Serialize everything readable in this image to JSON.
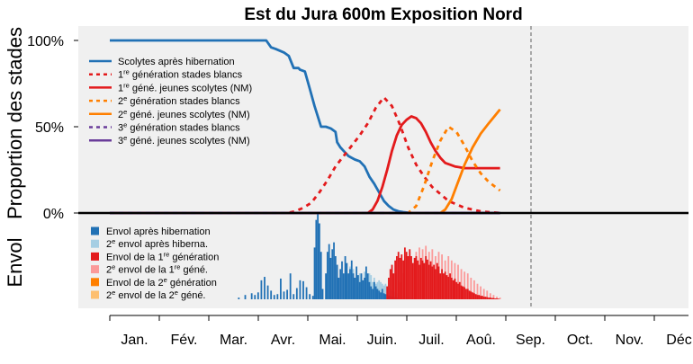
{
  "chart_data": {
    "type": "line+bar",
    "title": "Est du Jura 600m Exposition Nord",
    "ylabel_top": "Proportion des stades",
    "ylabel_bottom": "Envol",
    "yticks": [
      "100%",
      "50%",
      "0%"
    ],
    "ylim_top": [
      0,
      1.1
    ],
    "months": [
      "Jan.",
      "Fév.",
      "Mar.",
      "Avr.",
      "Mai.",
      "Juin.",
      "Juil.",
      "Aoû.",
      "Sep.",
      "Oct.",
      "Nov.",
      "Déc"
    ],
    "x_unit": "day of year",
    "xlim": [
      0,
      365
    ],
    "current_day_marker": 242,
    "grid": false,
    "legend_top_position": "top-left",
    "legend_bottom_position": "bottom-left",
    "series": [
      {
        "key": "s0",
        "pre": "Scolytes après hibernation",
        "sup": "",
        "post": "",
        "color": "#2171b5",
        "dash": false,
        "x": [
          0,
          97,
          100,
          103,
          108,
          111,
          114,
          117,
          118,
          121,
          124,
          127,
          130,
          131,
          134,
          137,
          140,
          141,
          143,
          146,
          148,
          150,
          152,
          155,
          158,
          161,
          164,
          167,
          170,
          173,
          176,
          179,
          182,
          185,
          188,
          242
        ],
        "y": [
          1,
          1,
          0.96,
          0.95,
          0.93,
          0.91,
          0.84,
          0.84,
          0.83,
          0.82,
          0.72,
          0.62,
          0.53,
          0.5,
          0.5,
          0.49,
          0.47,
          0.41,
          0.38,
          0.35,
          0.33,
          0.32,
          0.31,
          0.3,
          0.27,
          0.21,
          0.17,
          0.12,
          0.07,
          0.04,
          0.02,
          0.01,
          0.005,
          0.002,
          0,
          0
        ]
      },
      {
        "key": "s1",
        "pre": "1",
        "sup": "re",
        "post": " génération stades blancs",
        "color": "#e31a1c",
        "dash": true,
        "x": [
          0,
          110,
          115,
          120,
          125,
          130,
          135,
          140,
          145,
          150,
          155,
          160,
          165,
          170,
          175,
          180,
          185,
          190,
          195,
          200,
          205,
          210,
          215,
          220,
          225,
          230,
          235,
          240,
          242
        ],
        "y": [
          0,
          0,
          0.01,
          0.03,
          0.06,
          0.12,
          0.19,
          0.27,
          0.33,
          0.39,
          0.45,
          0.52,
          0.61,
          0.67,
          0.62,
          0.51,
          0.38,
          0.28,
          0.21,
          0.15,
          0.11,
          0.07,
          0.05,
          0.03,
          0.02,
          0.01,
          0.005,
          0.002,
          0
        ]
      },
      {
        "key": "s2",
        "pre": "1",
        "sup": "re",
        "post": " géné. jeunes scolytes (NM)",
        "color": "#e31a1c",
        "dash": false,
        "x": [
          0,
          160,
          163,
          166,
          169,
          172,
          175,
          178,
          181,
          184,
          187,
          190,
          193,
          196,
          199,
          202,
          205,
          208,
          211,
          214,
          217,
          220,
          225,
          230,
          235,
          242
        ],
        "y": [
          0,
          0,
          0.02,
          0.07,
          0.15,
          0.25,
          0.36,
          0.45,
          0.51,
          0.54,
          0.56,
          0.55,
          0.52,
          0.47,
          0.41,
          0.36,
          0.32,
          0.29,
          0.28,
          0.27,
          0.265,
          0.26,
          0.26,
          0.26,
          0.26,
          0.26
        ]
      },
      {
        "key": "s3",
        "pre": "2",
        "sup": "e",
        "post": " génération stades blancs",
        "color": "#ff7f00",
        "dash": true,
        "x": [
          0,
          185,
          190,
          195,
          200,
          205,
          210,
          215,
          220,
          225,
          230,
          235,
          242
        ],
        "y": [
          0,
          0,
          0.04,
          0.16,
          0.3,
          0.42,
          0.5,
          0.47,
          0.39,
          0.3,
          0.23,
          0.18,
          0.13
        ]
      },
      {
        "key": "s4",
        "pre": "2",
        "sup": "e",
        "post": " géné. jeunes scolytes (NM)",
        "color": "#ff7f00",
        "dash": false,
        "x": [
          0,
          205,
          208,
          212,
          216,
          220,
          225,
          230,
          235,
          242
        ],
        "y": [
          0,
          0,
          0.02,
          0.08,
          0.18,
          0.28,
          0.38,
          0.46,
          0.52,
          0.6
        ]
      },
      {
        "key": "s5",
        "pre": "3",
        "sup": "e",
        "post": " génération stades blancs",
        "color": "#6a3d9a",
        "dash": true,
        "x": [
          0,
          242
        ],
        "y": [
          0,
          0
        ]
      },
      {
        "key": "s6",
        "pre": "3",
        "sup": "e",
        "post": " géné. jeunes scolytes (NM)",
        "color": "#6a3d9a",
        "dash": false,
        "x": [
          0,
          242
        ],
        "y": [
          0,
          0
        ]
      }
    ],
    "bar_series": [
      {
        "key": "b0",
        "pre": "Envol après hibernation",
        "sup": "",
        "post": "",
        "color": "#2171b5"
      },
      {
        "key": "b1",
        "pre": "2",
        "sup": "e",
        "post": " envol après hiberna.",
        "color": "#a6cee3"
      },
      {
        "key": "b2",
        "pre": "Envol de la 1",
        "sup": "re",
        "post": " génération",
        "color": "#e31a1c"
      },
      {
        "key": "b3",
        "pre": "2",
        "sup": "e",
        "post": " envol de la 1",
        "sup2": "re",
        "post2": " géné.",
        "color": "#fb9a99"
      },
      {
        "key": "b4",
        "pre": "Envol de la 2",
        "sup": "e",
        "post": " génération",
        "color": "#ff7f00"
      },
      {
        "key": "b5",
        "pre": "2",
        "sup": "e",
        "post": " envol de la 2",
        "sup2": "e",
        "post2": " géné.",
        "color": "#fdbf6f"
      }
    ],
    "bars_b0": [
      [
        80,
        0.02
      ],
      [
        84,
        0.05
      ],
      [
        88,
        0.07
      ],
      [
        90,
        0.05
      ],
      [
        92,
        0.08
      ],
      [
        94,
        0.22
      ],
      [
        96,
        0.26
      ],
      [
        98,
        0.16
      ],
      [
        100,
        0.1
      ],
      [
        102,
        0.05
      ],
      [
        104,
        0.06
      ],
      [
        106,
        0.24
      ],
      [
        108,
        0.09
      ],
      [
        110,
        0.11
      ],
      [
        112,
        0.3
      ],
      [
        114,
        0.06
      ],
      [
        116,
        0.13
      ],
      [
        118,
        0.22
      ],
      [
        120,
        0.21
      ],
      [
        122,
        0.14
      ],
      [
        124,
        0.06
      ],
      [
        126,
        0.04
      ],
      [
        127,
        0.6
      ],
      [
        128,
        0.92
      ],
      [
        129,
        1.0
      ],
      [
        130,
        0.88
      ],
      [
        131,
        0.55
      ],
      [
        132,
        0.12
      ],
      [
        134,
        0.3
      ],
      [
        135,
        0.55
      ],
      [
        136,
        0.64
      ],
      [
        137,
        0.48
      ],
      [
        138,
        0.58
      ],
      [
        139,
        0.66
      ],
      [
        140,
        0.5
      ],
      [
        141,
        0.4
      ],
      [
        142,
        0.25
      ],
      [
        143,
        0.35
      ],
      [
        144,
        0.44
      ],
      [
        145,
        0.3
      ],
      [
        146,
        0.5
      ],
      [
        147,
        0.42
      ],
      [
        148,
        0.3
      ],
      [
        149,
        0.35
      ],
      [
        150,
        0.45
      ],
      [
        151,
        0.3
      ],
      [
        152,
        0.25
      ],
      [
        153,
        0.38
      ],
      [
        154,
        0.28
      ],
      [
        155,
        0.2
      ],
      [
        156,
        0.3
      ],
      [
        157,
        0.22
      ],
      [
        158,
        0.25
      ],
      [
        159,
        0.38
      ],
      [
        160,
        0.3
      ],
      [
        161,
        0.2
      ],
      [
        162,
        0.15
      ],
      [
        163,
        0.12
      ],
      [
        164,
        0.2
      ],
      [
        165,
        0.15
      ],
      [
        166,
        0.12
      ],
      [
        167,
        0.1
      ],
      [
        168,
        0.08
      ],
      [
        169,
        0.12
      ],
      [
        170,
        0.07
      ],
      [
        171,
        0.06
      ],
      [
        172,
        0.05
      ],
      [
        173,
        0.04
      ],
      [
        174,
        0.04
      ],
      [
        175,
        0.03
      ],
      [
        176,
        0.03
      ],
      [
        177,
        0.02
      ],
      [
        178,
        0.02
      ],
      [
        180,
        0.015
      ],
      [
        182,
        0.01
      ]
    ],
    "bars_b1": [
      [
        148,
        0.1
      ],
      [
        149,
        0.38
      ],
      [
        150,
        0.28
      ],
      [
        151,
        0.35
      ],
      [
        152,
        0.18
      ],
      [
        153,
        0.25
      ],
      [
        154,
        0.15
      ],
      [
        155,
        0.3
      ],
      [
        156,
        0.28
      ],
      [
        157,
        0.2
      ],
      [
        158,
        0.32
      ],
      [
        159,
        0.22
      ],
      [
        160,
        0.25
      ],
      [
        161,
        0.3
      ],
      [
        162,
        0.28
      ],
      [
        163,
        0.2
      ],
      [
        164,
        0.25
      ],
      [
        165,
        0.18
      ],
      [
        166,
        0.2
      ],
      [
        167,
        0.22
      ],
      [
        168,
        0.2
      ],
      [
        169,
        0.18
      ],
      [
        170,
        0.16
      ],
      [
        171,
        0.18
      ],
      [
        172,
        0.15
      ],
      [
        173,
        0.14
      ],
      [
        174,
        0.12
      ],
      [
        175,
        0.1
      ],
      [
        176,
        0.09
      ],
      [
        177,
        0.08
      ],
      [
        178,
        0.07
      ],
      [
        179,
        0.06
      ],
      [
        180,
        0.05
      ],
      [
        181,
        0.05
      ],
      [
        182,
        0.04
      ],
      [
        183,
        0.04
      ],
      [
        184,
        0.03
      ],
      [
        185,
        0.03
      ],
      [
        186,
        0.02
      ],
      [
        187,
        0.02
      ],
      [
        188,
        0.015
      ]
    ],
    "bars_b2": [
      [
        172,
        0.15
      ],
      [
        173,
        0.25
      ],
      [
        174,
        0.35
      ],
      [
        175,
        0.4
      ],
      [
        176,
        0.3
      ],
      [
        177,
        0.45
      ],
      [
        178,
        0.5
      ],
      [
        179,
        0.55
      ],
      [
        180,
        0.48
      ],
      [
        181,
        0.52
      ],
      [
        182,
        0.45
      ],
      [
        183,
        0.6
      ],
      [
        184,
        0.55
      ],
      [
        185,
        0.5
      ],
      [
        186,
        0.58
      ],
      [
        187,
        0.5
      ],
      [
        188,
        0.42
      ],
      [
        189,
        0.48
      ],
      [
        190,
        0.5
      ],
      [
        191,
        0.45
      ],
      [
        192,
        0.4
      ],
      [
        193,
        0.48
      ],
      [
        194,
        0.45
      ],
      [
        195,
        0.42
      ],
      [
        196,
        0.5
      ],
      [
        197,
        0.46
      ],
      [
        198,
        0.4
      ],
      [
        199,
        0.44
      ],
      [
        200,
        0.38
      ],
      [
        201,
        0.4
      ],
      [
        202,
        0.35
      ],
      [
        203,
        0.42
      ],
      [
        204,
        0.38
      ],
      [
        205,
        0.3
      ],
      [
        206,
        0.35
      ],
      [
        207,
        0.3
      ],
      [
        208,
        0.32
      ],
      [
        209,
        0.28
      ],
      [
        210,
        0.26
      ],
      [
        211,
        0.3
      ],
      [
        212,
        0.25
      ],
      [
        213,
        0.22
      ],
      [
        214,
        0.24
      ],
      [
        215,
        0.2
      ],
      [
        216,
        0.18
      ],
      [
        217,
        0.2
      ],
      [
        218,
        0.16
      ],
      [
        219,
        0.15
      ],
      [
        220,
        0.14
      ],
      [
        221,
        0.12
      ],
      [
        222,
        0.12
      ],
      [
        223,
        0.1
      ],
      [
        224,
        0.09
      ],
      [
        225,
        0.08
      ],
      [
        226,
        0.07
      ],
      [
        227,
        0.06
      ],
      [
        228,
        0.05
      ],
      [
        229,
        0.05
      ],
      [
        230,
        0.04
      ],
      [
        231,
        0.04
      ],
      [
        232,
        0.03
      ],
      [
        233,
        0.03
      ],
      [
        234,
        0.025
      ],
      [
        235,
        0.02
      ],
      [
        236,
        0.02
      ],
      [
        237,
        0.015
      ],
      [
        238,
        0.015
      ],
      [
        239,
        0.01
      ],
      [
        240,
        0.01
      ],
      [
        241,
        0.008
      ]
    ],
    "bars_b3": [
      [
        180,
        0.2
      ],
      [
        182,
        0.3
      ],
      [
        184,
        0.5
      ],
      [
        186,
        0.55
      ],
      [
        188,
        0.4
      ],
      [
        190,
        0.55
      ],
      [
        192,
        0.6
      ],
      [
        194,
        0.58
      ],
      [
        196,
        0.62
      ],
      [
        198,
        0.55
      ],
      [
        200,
        0.58
      ],
      [
        202,
        0.5
      ],
      [
        204,
        0.55
      ],
      [
        206,
        0.52
      ],
      [
        208,
        0.45
      ],
      [
        210,
        0.5
      ],
      [
        212,
        0.45
      ],
      [
        214,
        0.42
      ],
      [
        216,
        0.4
      ],
      [
        218,
        0.35
      ],
      [
        220,
        0.32
      ],
      [
        222,
        0.3
      ],
      [
        224,
        0.25
      ],
      [
        226,
        0.22
      ],
      [
        228,
        0.18
      ],
      [
        230,
        0.15
      ],
      [
        232,
        0.12
      ],
      [
        234,
        0.1
      ],
      [
        236,
        0.07
      ],
      [
        238,
        0.05
      ],
      [
        240,
        0.03
      ],
      [
        242,
        0.02
      ]
    ]
  }
}
